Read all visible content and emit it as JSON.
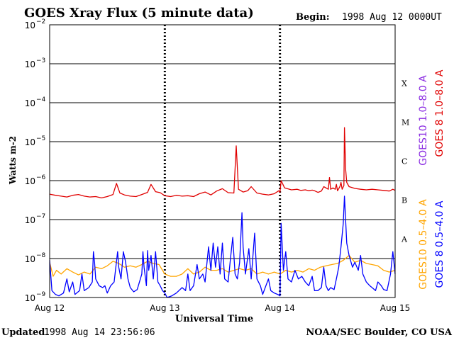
{
  "title": "GOES Xray Flux (5 minute data)",
  "begin_label": "Begin:",
  "begin_value": "1998 Aug 12 0000UT",
  "updated_label": "Updated",
  "updated_value": "1998 Aug 14 23:56:06",
  "credit": "NOAA/SEC Boulder, CO USA",
  "colors": {
    "goes8_long": "#e00000",
    "goes10_long": "#8a2be2",
    "goes8_short": "#0000ff",
    "goes10_short": "#ffa500",
    "grid": "#000000"
  },
  "chart_data": {
    "type": "line",
    "title": "GOES Xray Flux (5 minute data)",
    "xlabel": "Universal Time",
    "ylabel": "Watts m-2",
    "yscale": "log",
    "ylim": [
      1e-09,
      0.01
    ],
    "ytick_exponents": [
      -9,
      -8,
      -7,
      -6,
      -5,
      -4,
      -3,
      -2
    ],
    "ytick_base": "10",
    "x_ticks": [
      "Aug 12",
      "Aug 13",
      "Aug 14",
      "Aug 15"
    ],
    "xlim_days": [
      0,
      3
    ],
    "flare_classes": [
      {
        "label": "X",
        "flux": 0.0001
      },
      {
        "label": "M",
        "flux": 1e-05
      },
      {
        "label": "C",
        "flux": 1e-06
      },
      {
        "label": "B",
        "flux": 1e-07
      },
      {
        "label": "A",
        "flux": 1e-08
      }
    ],
    "legend": [
      {
        "text": "GOES10 1.0–8.0 A",
        "color": "#8a2be2"
      },
      {
        "text": "GOES 8 1.0–8.0 A",
        "color": "#e00000"
      },
      {
        "text": "GOES10 0.5–4.0 A",
        "color": "#ffa500"
      },
      {
        "text": "GOES 8 0.5–4.0 A",
        "color": "#0000ff"
      }
    ],
    "grid": true,
    "series": [
      {
        "name": "GOES 8 1.0–8.0 A",
        "color": "#e00000",
        "points": [
          [
            0.0,
            4.5e-07
          ],
          [
            0.05,
            4.2e-07
          ],
          [
            0.1,
            4e-07
          ],
          [
            0.15,
            3.8e-07
          ],
          [
            0.2,
            4.2e-07
          ],
          [
            0.25,
            4.4e-07
          ],
          [
            0.3,
            4e-07
          ],
          [
            0.35,
            3.8e-07
          ],
          [
            0.4,
            3.9e-07
          ],
          [
            0.45,
            3.6e-07
          ],
          [
            0.5,
            3.9e-07
          ],
          [
            0.55,
            4.4e-07
          ],
          [
            0.58,
            8.5e-07
          ],
          [
            0.61,
            4.8e-07
          ],
          [
            0.65,
            4.3e-07
          ],
          [
            0.7,
            4e-07
          ],
          [
            0.75,
            3.9e-07
          ],
          [
            0.8,
            4.4e-07
          ],
          [
            0.85,
            5e-07
          ],
          [
            0.88,
            8e-07
          ],
          [
            0.92,
            5.2e-07
          ],
          [
            0.96,
            4.9e-07
          ],
          [
            1.0,
            4.1e-07
          ],
          [
            1.05,
            3.9e-07
          ],
          [
            1.1,
            4.2e-07
          ],
          [
            1.15,
            4e-07
          ],
          [
            1.2,
            4.1e-07
          ],
          [
            1.25,
            3.9e-07
          ],
          [
            1.3,
            4.6e-07
          ],
          [
            1.35,
            5.1e-07
          ],
          [
            1.4,
            4.3e-07
          ],
          [
            1.45,
            5.4e-07
          ],
          [
            1.5,
            6.2e-07
          ],
          [
            1.55,
            4.9e-07
          ],
          [
            1.6,
            4.8e-07
          ],
          [
            1.62,
            7.8e-06
          ],
          [
            1.64,
            6e-07
          ],
          [
            1.68,
            5.1e-07
          ],
          [
            1.72,
            5.5e-07
          ],
          [
            1.75,
            7e-07
          ],
          [
            1.8,
            4.8e-07
          ],
          [
            1.85,
            4.5e-07
          ],
          [
            1.9,
            4.3e-07
          ],
          [
            1.95,
            4.6e-07
          ],
          [
            1.99,
            5.5e-07
          ],
          [
            2.0,
            5e-07
          ],
          [
            2.01,
            1e-06
          ],
          [
            2.04,
            6.5e-07
          ],
          [
            2.1,
            5.8e-07
          ],
          [
            2.15,
            6e-07
          ],
          [
            2.18,
            5.6e-07
          ],
          [
            2.22,
            5.8e-07
          ],
          [
            2.25,
            5.5e-07
          ],
          [
            2.28,
            5.7e-07
          ],
          [
            2.3,
            5.5e-07
          ],
          [
            2.33,
            5e-07
          ],
          [
            2.36,
            5.4e-07
          ],
          [
            2.38,
            7e-07
          ],
          [
            2.4,
            6.5e-07
          ],
          [
            2.42,
            6e-07
          ],
          [
            2.43,
            1.2e-06
          ],
          [
            2.44,
            6e-07
          ],
          [
            2.46,
            6.5e-07
          ],
          [
            2.48,
            6e-07
          ],
          [
            2.49,
            8e-07
          ],
          [
            2.5,
            5.5e-07
          ],
          [
            2.52,
            7e-07
          ],
          [
            2.53,
            9e-07
          ],
          [
            2.54,
            6e-07
          ],
          [
            2.555,
            7.5e-07
          ],
          [
            2.56,
            2.3e-05
          ],
          [
            2.57,
            2e-06
          ],
          [
            2.58,
            9e-07
          ],
          [
            2.6,
            7e-07
          ],
          [
            2.65,
            6.3e-07
          ],
          [
            2.7,
            6e-07
          ],
          [
            2.75,
            5.8e-07
          ],
          [
            2.8,
            6e-07
          ],
          [
            2.85,
            5.8e-07
          ],
          [
            2.9,
            5.6e-07
          ],
          [
            2.95,
            5.4e-07
          ],
          [
            2.98,
            6e-07
          ],
          [
            3.0,
            5.6e-07
          ]
        ]
      },
      {
        "name": "GOES10 0.5–4.0 A",
        "color": "#ffa500",
        "points": [
          [
            0.0,
            8e-09
          ],
          [
            0.03,
            3.5e-09
          ],
          [
            0.06,
            5e-09
          ],
          [
            0.1,
            4e-09
          ],
          [
            0.15,
            5.5e-09
          ],
          [
            0.2,
            4.5e-09
          ],
          [
            0.25,
            3.8e-09
          ],
          [
            0.3,
            4.5e-09
          ],
          [
            0.35,
            4e-09
          ],
          [
            0.4,
            6e-09
          ],
          [
            0.45,
            5.5e-09
          ],
          [
            0.5,
            6.5e-09
          ],
          [
            0.55,
            8.5e-09
          ],
          [
            0.6,
            7.5e-09
          ],
          [
            0.65,
            6e-09
          ],
          [
            0.7,
            6.5e-09
          ],
          [
            0.75,
            6e-09
          ],
          [
            0.8,
            7e-09
          ],
          [
            0.85,
            8.5e-09
          ],
          [
            0.9,
            7.5e-09
          ],
          [
            0.95,
            7e-09
          ],
          [
            1.0,
            4e-09
          ],
          [
            1.05,
            3.5e-09
          ],
          [
            1.1,
            3.5e-09
          ],
          [
            1.15,
            4e-09
          ],
          [
            1.2,
            5.5e-09
          ],
          [
            1.25,
            4e-09
          ],
          [
            1.3,
            4.5e-09
          ],
          [
            1.35,
            6e-09
          ],
          [
            1.4,
            5e-09
          ],
          [
            1.45,
            5e-09
          ],
          [
            1.5,
            5.5e-09
          ],
          [
            1.55,
            4.5e-09
          ],
          [
            1.6,
            5e-09
          ],
          [
            1.65,
            5.5e-09
          ],
          [
            1.7,
            5e-09
          ],
          [
            1.75,
            5.5e-09
          ],
          [
            1.8,
            4e-09
          ],
          [
            1.85,
            4.5e-09
          ],
          [
            1.9,
            4e-09
          ],
          [
            1.95,
            4.5e-09
          ],
          [
            2.0,
            4e-09
          ],
          [
            2.05,
            5e-09
          ],
          [
            2.1,
            4.5e-09
          ],
          [
            2.15,
            5e-09
          ],
          [
            2.2,
            4.5e-09
          ],
          [
            2.25,
            5.5e-09
          ],
          [
            2.3,
            5e-09
          ],
          [
            2.35,
            6e-09
          ],
          [
            2.4,
            6.5e-09
          ],
          [
            2.45,
            7e-09
          ],
          [
            2.5,
            7.5e-09
          ],
          [
            2.55,
            9e-09
          ],
          [
            2.6,
            1.2e-08
          ],
          [
            2.65,
            8e-09
          ],
          [
            2.7,
            9e-09
          ],
          [
            2.75,
            7.5e-09
          ],
          [
            2.8,
            7e-09
          ],
          [
            2.85,
            6.5e-09
          ],
          [
            2.9,
            5e-09
          ],
          [
            2.95,
            4.5e-09
          ],
          [
            3.0,
            5e-09
          ]
        ]
      },
      {
        "name": "GOES 8 0.5–4.0 A",
        "color": "#0000ff",
        "points": [
          [
            0.0,
            9e-09
          ],
          [
            0.02,
            1.5e-09
          ],
          [
            0.05,
            1.2e-09
          ],
          [
            0.08,
            1.1e-09
          ],
          [
            0.12,
            1.3e-09
          ],
          [
            0.15,
            3e-09
          ],
          [
            0.17,
            1.4e-09
          ],
          [
            0.2,
            2.5e-09
          ],
          [
            0.22,
            1.2e-09
          ],
          [
            0.26,
            1.5e-09
          ],
          [
            0.28,
            4e-09
          ],
          [
            0.3,
            1.5e-09
          ],
          [
            0.34,
            1.8e-09
          ],
          [
            0.37,
            2.5e-09
          ],
          [
            0.38,
            1.5e-08
          ],
          [
            0.39,
            8e-09
          ],
          [
            0.4,
            3e-09
          ],
          [
            0.43,
            2e-09
          ],
          [
            0.46,
            1.8e-09
          ],
          [
            0.48,
            2e-09
          ],
          [
            0.5,
            1.3e-09
          ],
          [
            0.53,
            2e-09
          ],
          [
            0.56,
            2.5e-09
          ],
          [
            0.59,
            1.5e-08
          ],
          [
            0.6,
            6e-09
          ],
          [
            0.62,
            3e-09
          ],
          [
            0.64,
            1.5e-08
          ],
          [
            0.66,
            8e-09
          ],
          [
            0.68,
            3e-09
          ],
          [
            0.7,
            1.8e-09
          ],
          [
            0.73,
            1.4e-09
          ],
          [
            0.76,
            1.6e-09
          ],
          [
            0.78,
            2.5e-09
          ],
          [
            0.8,
            4e-09
          ],
          [
            0.81,
            1.5e-08
          ],
          [
            0.82,
            6e-09
          ],
          [
            0.84,
            2e-09
          ],
          [
            0.85,
            1.6e-08
          ],
          [
            0.86,
            5e-09
          ],
          [
            0.88,
            1.2e-08
          ],
          [
            0.9,
            3e-09
          ],
          [
            0.92,
            1.5e-08
          ],
          [
            0.94,
            2.5e-09
          ],
          [
            0.96,
            2e-09
          ],
          [
            0.98,
            1.5e-09
          ],
          [
            1.0,
            1.3e-09
          ],
          [
            1.02,
            1e-09
          ],
          [
            1.06,
            1.1e-09
          ],
          [
            1.1,
            1.3e-09
          ],
          [
            1.15,
            1.8e-09
          ],
          [
            1.18,
            1.5e-09
          ],
          [
            1.2,
            4e-09
          ],
          [
            1.22,
            1.5e-09
          ],
          [
            1.25,
            2e-09
          ],
          [
            1.28,
            7e-09
          ],
          [
            1.3,
            3e-09
          ],
          [
            1.33,
            4e-09
          ],
          [
            1.35,
            2.5e-09
          ],
          [
            1.38,
            2e-08
          ],
          [
            1.4,
            5e-09
          ],
          [
            1.42,
            2.5e-08
          ],
          [
            1.44,
            6e-09
          ],
          [
            1.46,
            2e-08
          ],
          [
            1.48,
            4e-09
          ],
          [
            1.5,
            2.5e-08
          ],
          [
            1.52,
            3e-09
          ],
          [
            1.55,
            2.5e-09
          ],
          [
            1.57,
            1e-08
          ],
          [
            1.59,
            3.5e-08
          ],
          [
            1.61,
            4e-09
          ],
          [
            1.63,
            3e-09
          ],
          [
            1.65,
            8e-09
          ],
          [
            1.67,
            1.5e-07
          ],
          [
            1.68,
            2e-08
          ],
          [
            1.7,
            4e-09
          ],
          [
            1.73,
            1.8e-08
          ],
          [
            1.75,
            3e-09
          ],
          [
            1.78,
            4.5e-08
          ],
          [
            1.8,
            3e-09
          ],
          [
            1.83,
            2e-09
          ],
          [
            1.85,
            1.2e-09
          ],
          [
            1.9,
            3e-09
          ],
          [
            1.92,
            1.5e-09
          ],
          [
            1.95,
            1.3e-09
          ],
          [
            1.98,
            1.2e-09
          ],
          [
            2.0,
            1.1e-09
          ],
          [
            2.01,
            8e-08
          ],
          [
            2.03,
            5e-09
          ],
          [
            2.05,
            1.5e-08
          ],
          [
            2.07,
            3e-09
          ],
          [
            2.1,
            2.5e-09
          ],
          [
            2.13,
            5e-09
          ],
          [
            2.16,
            3e-09
          ],
          [
            2.19,
            3.5e-09
          ],
          [
            2.22,
            2.5e-09
          ],
          [
            2.25,
            2e-09
          ],
          [
            2.28,
            3.5e-09
          ],
          [
            2.3,
            1.5e-09
          ],
          [
            2.33,
            1.5e-09
          ],
          [
            2.36,
            1.8e-09
          ],
          [
            2.38,
            6e-09
          ],
          [
            2.4,
            2e-09
          ],
          [
            2.42,
            1.5e-09
          ],
          [
            2.44,
            1.8e-09
          ],
          [
            2.47,
            1.6e-09
          ],
          [
            2.49,
            3e-09
          ],
          [
            2.51,
            6e-09
          ],
          [
            2.53,
            2e-08
          ],
          [
            2.55,
            8e-08
          ],
          [
            2.56,
            4e-07
          ],
          [
            2.57,
            1e-07
          ],
          [
            2.58,
            2.5e-08
          ],
          [
            2.6,
            1.2e-08
          ],
          [
            2.63,
            6e-09
          ],
          [
            2.65,
            8e-09
          ],
          [
            2.68,
            5e-09
          ],
          [
            2.7,
            1.2e-08
          ],
          [
            2.72,
            4e-09
          ],
          [
            2.75,
            2.5e-09
          ],
          [
            2.78,
            2e-09
          ],
          [
            2.8,
            1.8e-09
          ],
          [
            2.83,
            1.5e-09
          ],
          [
            2.85,
            2.5e-09
          ],
          [
            2.88,
            2e-09
          ],
          [
            2.9,
            1.6e-09
          ],
          [
            2.93,
            1.5e-09
          ],
          [
            2.96,
            4e-09
          ],
          [
            2.98,
            1.5e-08
          ],
          [
            3.0,
            4e-09
          ]
        ]
      }
    ]
  }
}
